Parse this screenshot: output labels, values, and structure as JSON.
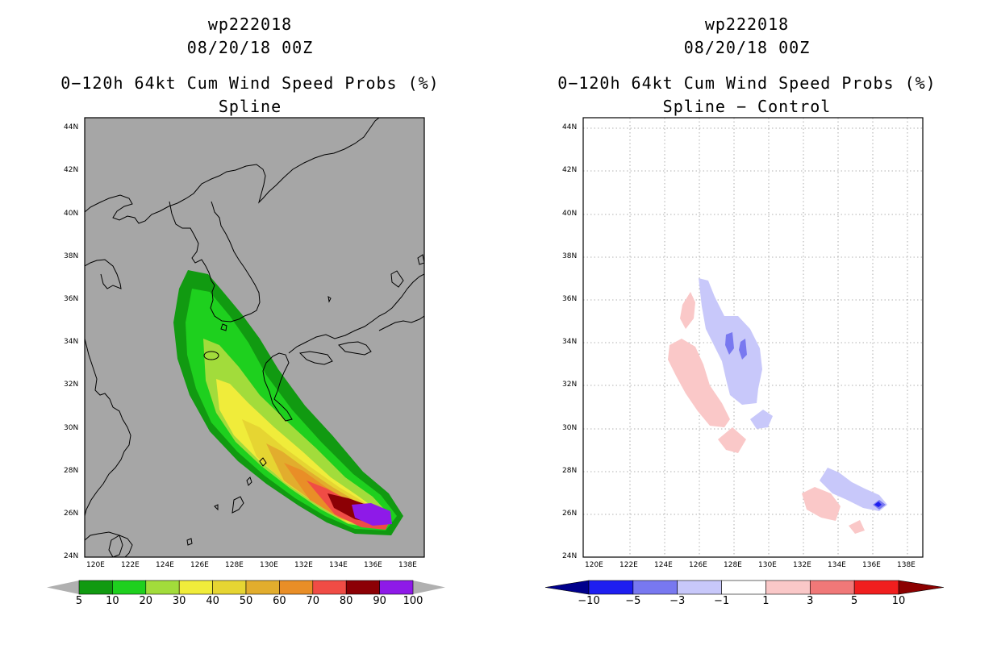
{
  "left_panel": {
    "title": {
      "line1": "wp222018",
      "line2": "08/20/18 00Z",
      "line3": "0−120h 64kt Cum Wind Speed Probs (%)",
      "line4": "Spline"
    },
    "lat_ticks": [
      "44N",
      "42N",
      "40N",
      "38N",
      "36N",
      "34N",
      "32N",
      "30N",
      "28N",
      "26N",
      "24N"
    ],
    "lon_ticks": [
      "120E",
      "122E",
      "124E",
      "126E",
      "128E",
      "130E",
      "132E",
      "134E",
      "136E",
      "138E"
    ],
    "colorbar": {
      "labels": [
        "5",
        "10",
        "20",
        "30",
        "40",
        "50",
        "60",
        "70",
        "80",
        "90",
        "100"
      ],
      "colors": [
        "#119a11",
        "#1ed01e",
        "#a2dc3b",
        "#f0ec3a",
        "#e6d532",
        "#e2ad2d",
        "#e98e27",
        "#f04c45",
        "#8c0005",
        "#8e1ae8"
      ],
      "end_color": "#b0b0b0"
    }
  },
  "right_panel": {
    "title": {
      "line1": "wp222018",
      "line2": "08/20/18 00Z",
      "line3": "0−120h 64kt Cum Wind Speed Probs (%)",
      "line4": "Spline − Control"
    },
    "lat_ticks": [
      "44N",
      "42N",
      "40N",
      "38N",
      "36N",
      "34N",
      "32N",
      "30N",
      "28N",
      "26N",
      "24N"
    ],
    "lon_ticks": [
      "120E",
      "122E",
      "124E",
      "126E",
      "128E",
      "130E",
      "132E",
      "134E",
      "136E",
      "138E"
    ],
    "colorbar": {
      "labels": [
        "−10",
        "−5",
        "−3",
        "−1",
        "1",
        "3",
        "5",
        "10"
      ],
      "colors": [
        "#0000c8",
        "#1e1ef0",
        "#7878f0",
        "#c8c8fa",
        "#ffffff",
        "#fac8c8",
        "#f07878",
        "#f01e1e",
        "#c80000"
      ],
      "end_left": "#00008c",
      "end_right": "#8c0000"
    }
  },
  "map": {
    "background_probability": "#a6a6a6",
    "background_difference": "#ffffff",
    "coast_color": "#000000",
    "grid_color": "#999999"
  }
}
